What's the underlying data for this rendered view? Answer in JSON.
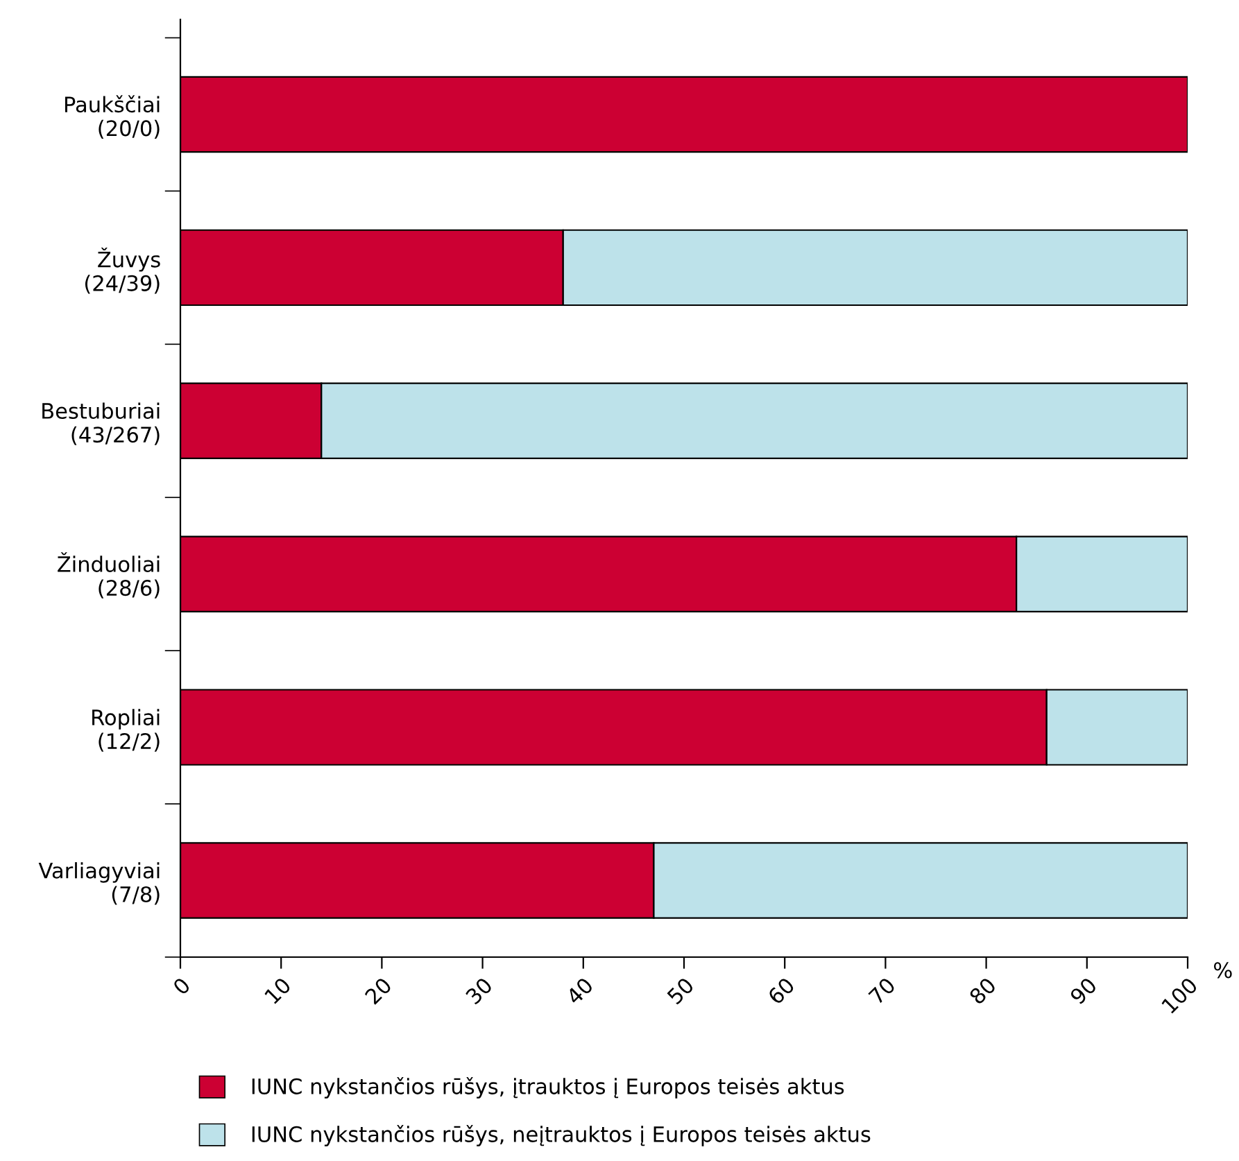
{
  "chart_data": {
    "type": "bar",
    "orientation": "horizontal",
    "stacked": true,
    "categories": [
      "Paukščiai\n(20/0)",
      "Žuvys\n(24/39)",
      "Bestuburiai\n(43/267)",
      "Žinduoliai\n(28/6)",
      "Ropliai\n(12/2)",
      "Varliagyviai\n(7/8)"
    ],
    "series": [
      {
        "name": "IUNC nykstančios rūšys, įtrauktos į Europos teisės aktus",
        "color": "#cc0033",
        "values": [
          100,
          38,
          14,
          83,
          86,
          47
        ]
      },
      {
        "name": "IUNC nykstančios rūšys, neįtrauktos į Europos teisės aktus",
        "color": "#bde2ea",
        "values": [
          0,
          62,
          86,
          17,
          14,
          53
        ]
      }
    ],
    "xlabel": "%",
    "xlim": [
      0,
      100
    ],
    "xticks": [
      0,
      10,
      20,
      30,
      40,
      50,
      60,
      70,
      80,
      90,
      100
    ],
    "grid": false,
    "legend": "bottom"
  }
}
